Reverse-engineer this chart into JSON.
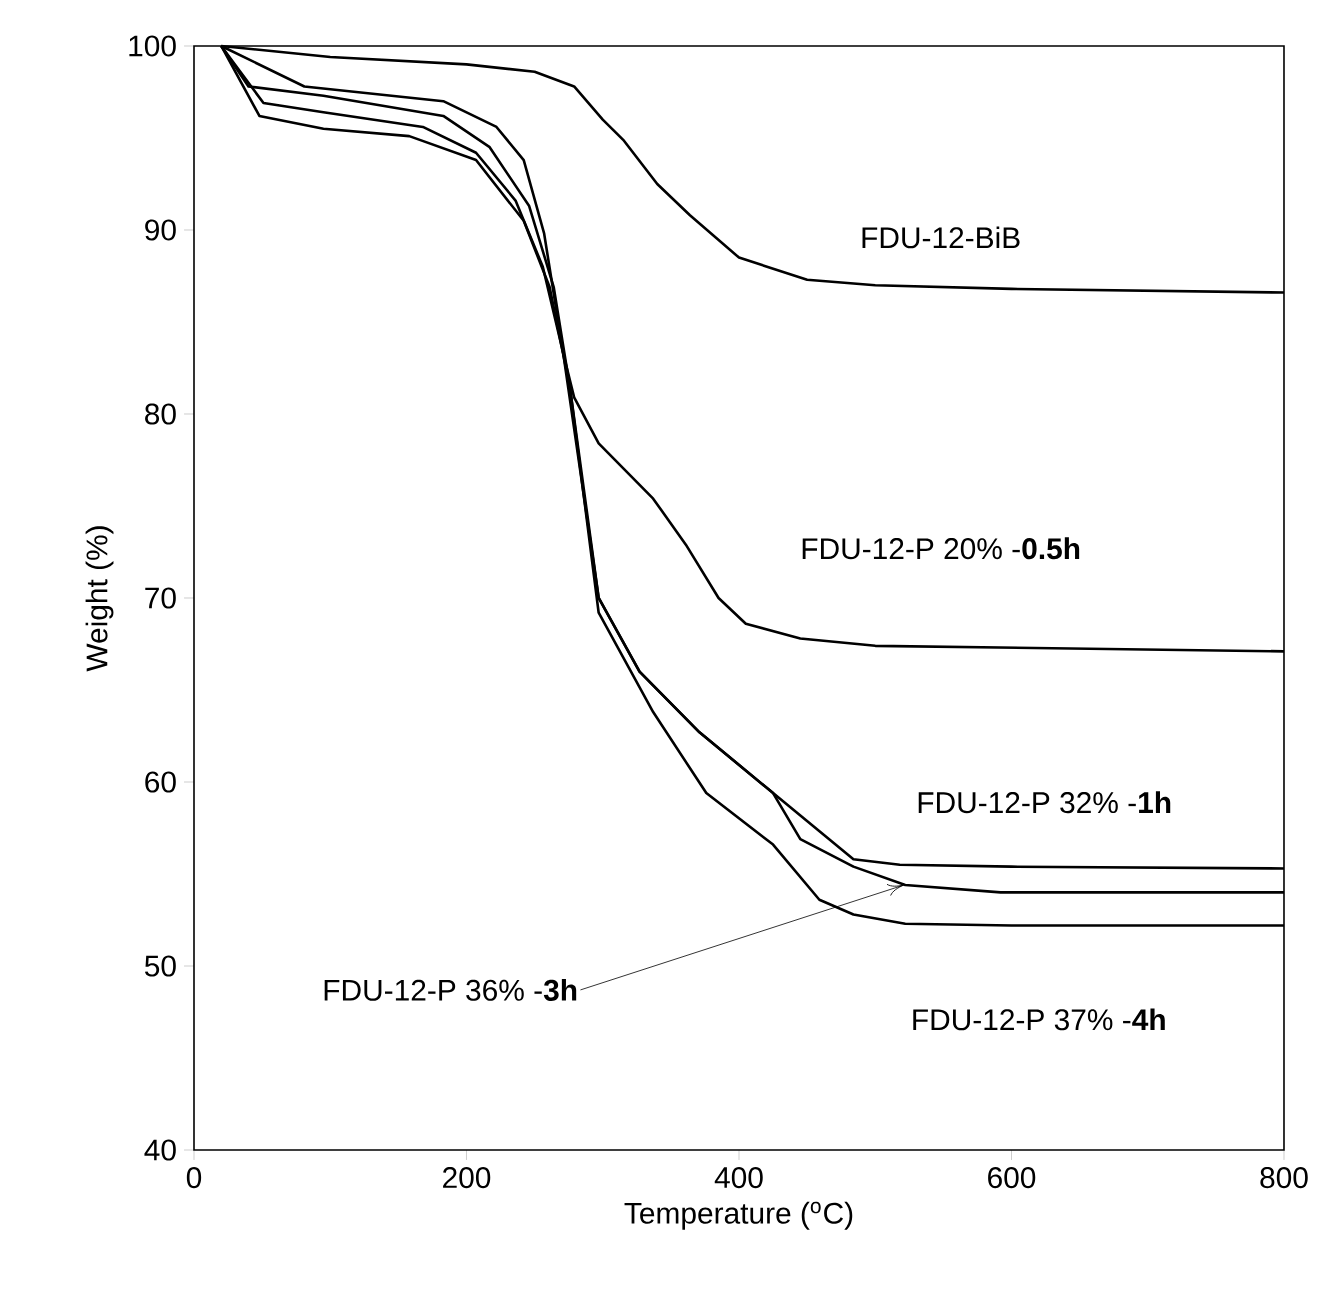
{
  "chart_data": {
    "type": "line",
    "xlabel": "Temperature ($^{o}$C)",
    "ylabel": "Weight (%)",
    "xlim": [
      0,
      800
    ],
    "ylim": [
      40,
      100
    ],
    "xticks": [
      0,
      200,
      400,
      600,
      800
    ],
    "yticks": [
      40,
      50,
      60,
      70,
      80,
      90,
      100
    ],
    "series": [
      {
        "name": "FDU-12-BiB",
        "color": "#000000",
        "x": [
          20,
          100,
          200,
          250,
          279,
          300,
          315,
          340,
          364,
          400,
          450,
          500,
          600,
          800
        ],
        "values": [
          100,
          99.4,
          99,
          98.6,
          97.8,
          96,
          94.9,
          92.5,
          90.8,
          88.5,
          87.3,
          87,
          86.8,
          86.6
        ]
      },
      {
        "name": "FDU-12-P 20% -**0.5h**",
        "color": "#000000",
        "x": [
          20,
          81,
          183,
          222,
          242,
          257,
          271,
          279,
          297,
          337,
          361,
          385,
          405,
          445,
          500,
          800
        ],
        "values": [
          100,
          97.8,
          97,
          95.6,
          93.8,
          89.8,
          83.3,
          80.9,
          78.4,
          75.4,
          72.9,
          70,
          68.6,
          67.8,
          67.4,
          67.1
        ]
      },
      {
        "name": "FDU-12-P 32% -**1h**",
        "color": "#000000",
        "x": [
          20,
          40,
          95,
          183,
          217,
          246,
          264,
          276,
          297,
          327,
          371,
          425,
          484,
          518,
          600,
          800
        ],
        "values": [
          100,
          97.8,
          97.3,
          96.2,
          94.5,
          91.3,
          86.9,
          81.4,
          70,
          66,
          62.7,
          59.4,
          55.8,
          55.5,
          55.4,
          55.3
        ]
      },
      {
        "name": "FDU-12-P 36% -**3h**",
        "color": "#000000",
        "x": [
          20,
          51,
          95,
          168,
          207,
          236,
          256,
          271,
          297,
          327,
          371,
          425,
          445,
          484,
          522,
          592,
          800
        ],
        "values": [
          100,
          96.9,
          96.4,
          95.6,
          94.2,
          91.6,
          88,
          83.3,
          70,
          66,
          62.7,
          59.4,
          56.9,
          55.4,
          54.4,
          54,
          54
        ]
      },
      {
        "name": "FDU-12-P 37% -**4h**",
        "color": "#000000",
        "x": [
          20,
          48,
          95,
          158,
          207,
          242,
          261,
          276,
          297,
          337,
          376,
          425,
          459,
          484,
          522,
          600,
          800
        ],
        "values": [
          100,
          96.2,
          95.5,
          95.1,
          93.8,
          90.5,
          86.9,
          81.4,
          69.2,
          63.8,
          59.4,
          56.6,
          53.6,
          52.8,
          52.3,
          52.2,
          52.2
        ]
      }
    ]
  }
}
